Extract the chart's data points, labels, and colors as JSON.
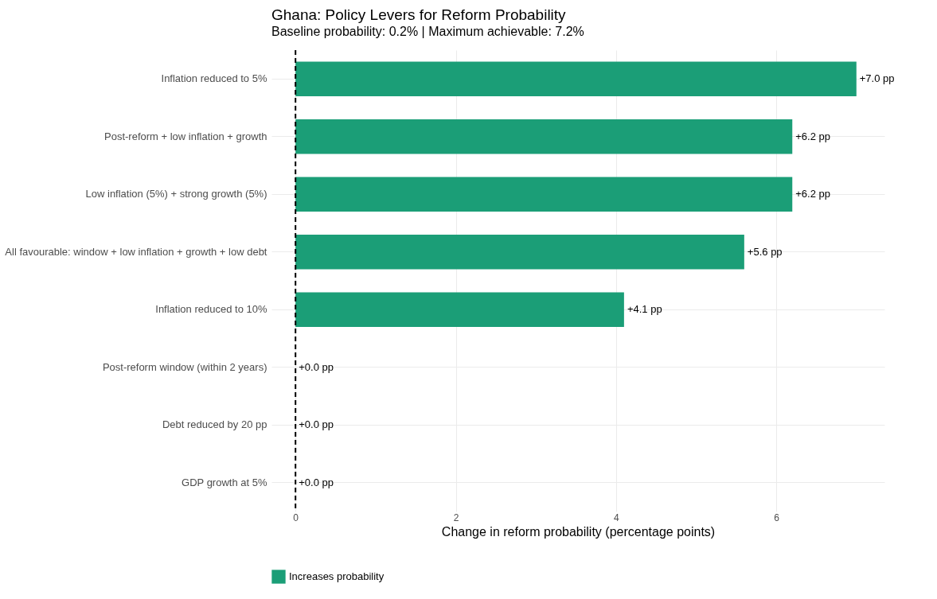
{
  "chart_data": {
    "type": "bar",
    "orientation": "horizontal",
    "title": "Ghana: Policy Levers for Reform Probability",
    "subtitle": "Baseline probability: 0.2%  |  Maximum achievable: 7.2%",
    "xlabel": "Change in reform probability (percentage points)",
    "categories": [
      "Inflation reduced to 5%",
      "Post-reform + low inflation + growth",
      "Low inflation (5%) + strong growth (5%)",
      "All favourable: window + low inflation + growth + low debt",
      "Inflation reduced to 10%",
      "Post-reform window (within 2 years)",
      "Debt reduced by 20 pp",
      "GDP growth at 5%"
    ],
    "series": [
      {
        "name": "Increases probability",
        "color": "#1b9e77",
        "values": [
          7.0,
          6.2,
          6.2,
          5.6,
          4.1,
          0.0,
          0.0,
          0.0
        ],
        "value_labels": [
          "+7.0 pp",
          "+6.2 pp",
          "+6.2 pp",
          "+5.6 pp",
          "+4.1 pp",
          "+0.0 pp",
          "+0.0 pp",
          "+0.0 pp"
        ]
      }
    ],
    "xlim": [
      -0.3,
      7.35
    ],
    "xticks": [
      0,
      2,
      4,
      6
    ],
    "grid": true,
    "legend": "bottom",
    "ref_lines": [
      {
        "axis": "x",
        "value": 0,
        "color": "#000000",
        "line_style": "dashed"
      }
    ]
  }
}
